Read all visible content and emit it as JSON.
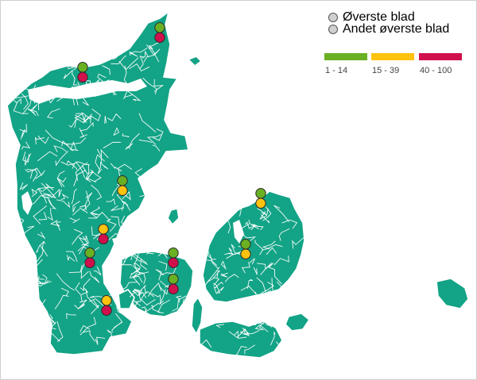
{
  "legend": {
    "leaf_labels": [
      "Øverste blad",
      "Andet øverste blad"
    ],
    "classes": [
      {
        "label": "1 - 14",
        "color": "#6ab023"
      },
      {
        "label": "15 - 39",
        "color": "#ffc20e"
      },
      {
        "label": "40 - 100",
        "color": "#d0104c"
      }
    ]
  },
  "colors": {
    "land": "#13a386",
    "marker_outline": "#2b2b2b",
    "legend_marker": "#cfcfcf"
  },
  "stations": [
    {
      "top_class": 0,
      "second_class": 2
    },
    {
      "top_class": 0,
      "second_class": 2
    },
    {
      "top_class": 0,
      "second_class": 1
    },
    {
      "top_class": 0,
      "second_class": 1
    },
    {
      "top_class": 1,
      "second_class": 2
    },
    {
      "top_class": 0,
      "second_class": 2
    },
    {
      "top_class": 0,
      "second_class": 2
    },
    {
      "top_class": 0,
      "second_class": 1
    },
    {
      "top_class": 0,
      "second_class": 2
    },
    {
      "top_class": 1,
      "second_class": 2
    }
  ]
}
